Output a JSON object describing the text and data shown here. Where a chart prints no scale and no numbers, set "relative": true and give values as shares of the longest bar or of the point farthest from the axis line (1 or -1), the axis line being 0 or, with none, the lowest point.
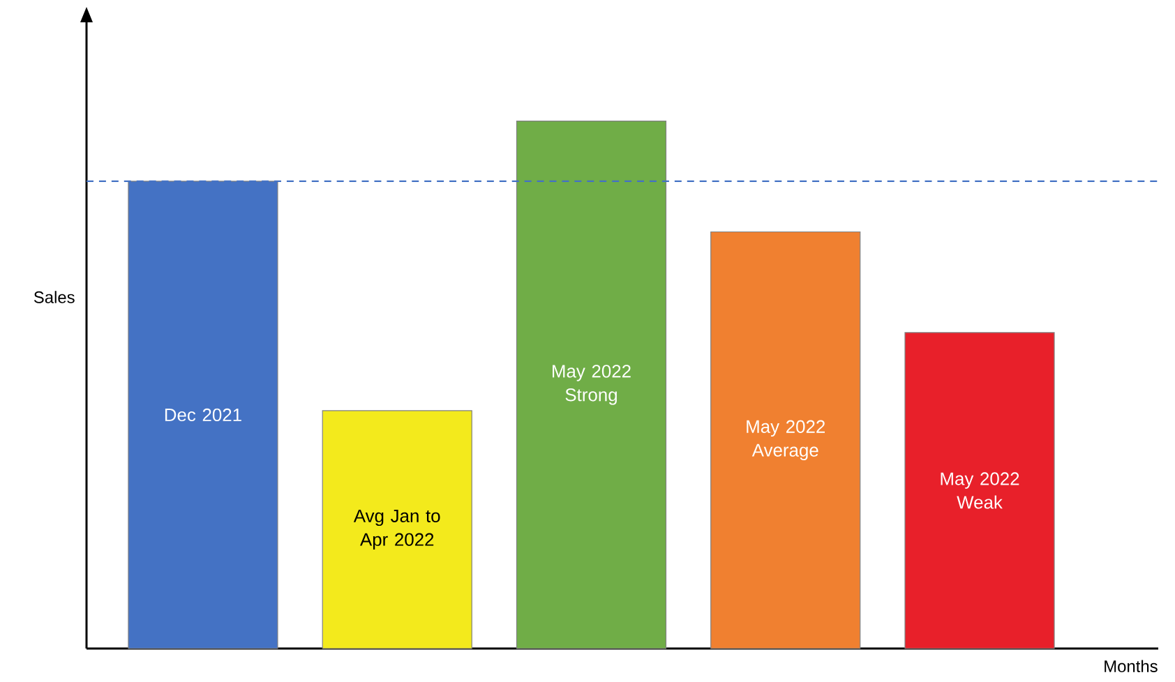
{
  "chart_data": {
    "type": "bar",
    "relative": true,
    "xlabel": "Months",
    "ylabel": "Sales",
    "categories": [
      "Dec 2021",
      "Avg Jan to Apr 2022",
      "May 2022 Strong",
      "May 2022 Average",
      "May 2022 Weak"
    ],
    "values": [
      0.886,
      0.451,
      1,
      0.79,
      0.599
    ],
    "colors": [
      "#4472c4",
      "#f3ea1c",
      "#70ad47",
      "#f08030",
      "#e8202a"
    ],
    "ref_lines": [
      {
        "axis": "y",
        "value": 0.886,
        "color": "#4472c4",
        "line_style": "dashed"
      }
    ]
  }
}
